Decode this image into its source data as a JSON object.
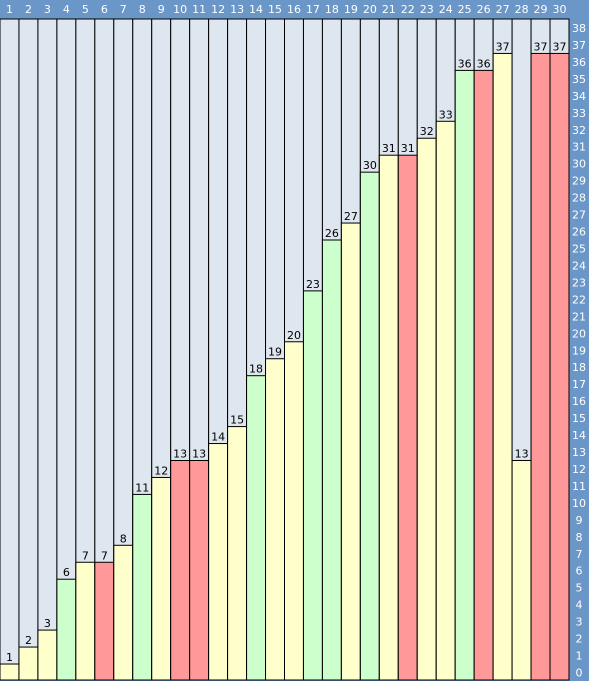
{
  "colors": {
    "frame": "#6b96c8",
    "column_background": "#dee6ef",
    "border": "#000000",
    "yellow": "#ffffcc",
    "green": "#ccffcc",
    "red": "#ff9999",
    "header_text": "#ffffff",
    "value_text": "#000000"
  },
  "chart_data": {
    "type": "bar",
    "title": "",
    "xlabel": "",
    "ylabel": "",
    "ylim": [
      0,
      38
    ],
    "y_ticks": [
      0,
      1,
      2,
      3,
      4,
      5,
      6,
      7,
      8,
      9,
      10,
      11,
      12,
      13,
      14,
      15,
      16,
      17,
      18,
      19,
      20,
      21,
      22,
      23,
      24,
      25,
      26,
      27,
      28,
      29,
      30,
      31,
      32,
      33,
      34,
      35,
      36,
      37,
      38
    ],
    "y_axis_position": "right",
    "categories_position": "top",
    "grid": false,
    "legend": "none",
    "categories": [
      "1",
      "2",
      "3",
      "4",
      "5",
      "6",
      "7",
      "8",
      "9",
      "10",
      "11",
      "12",
      "13",
      "14",
      "15",
      "16",
      "17",
      "18",
      "19",
      "20",
      "21",
      "22",
      "23",
      "24",
      "25",
      "26",
      "27",
      "28",
      "29",
      "30"
    ],
    "values": [
      1,
      2,
      3,
      6,
      7,
      7,
      8,
      11,
      12,
      13,
      13,
      14,
      15,
      18,
      19,
      20,
      23,
      26,
      27,
      30,
      31,
      31,
      32,
      33,
      36,
      36,
      37,
      13,
      37,
      37
    ],
    "bar_colors": [
      "yellow",
      "yellow",
      "yellow",
      "green",
      "yellow",
      "red",
      "yellow",
      "green",
      "yellow",
      "red",
      "red",
      "yellow",
      "yellow",
      "green",
      "yellow",
      "yellow",
      "green",
      "green",
      "yellow",
      "green",
      "yellow",
      "red",
      "yellow",
      "yellow",
      "green",
      "red",
      "yellow",
      "yellow",
      "red",
      "red"
    ]
  }
}
